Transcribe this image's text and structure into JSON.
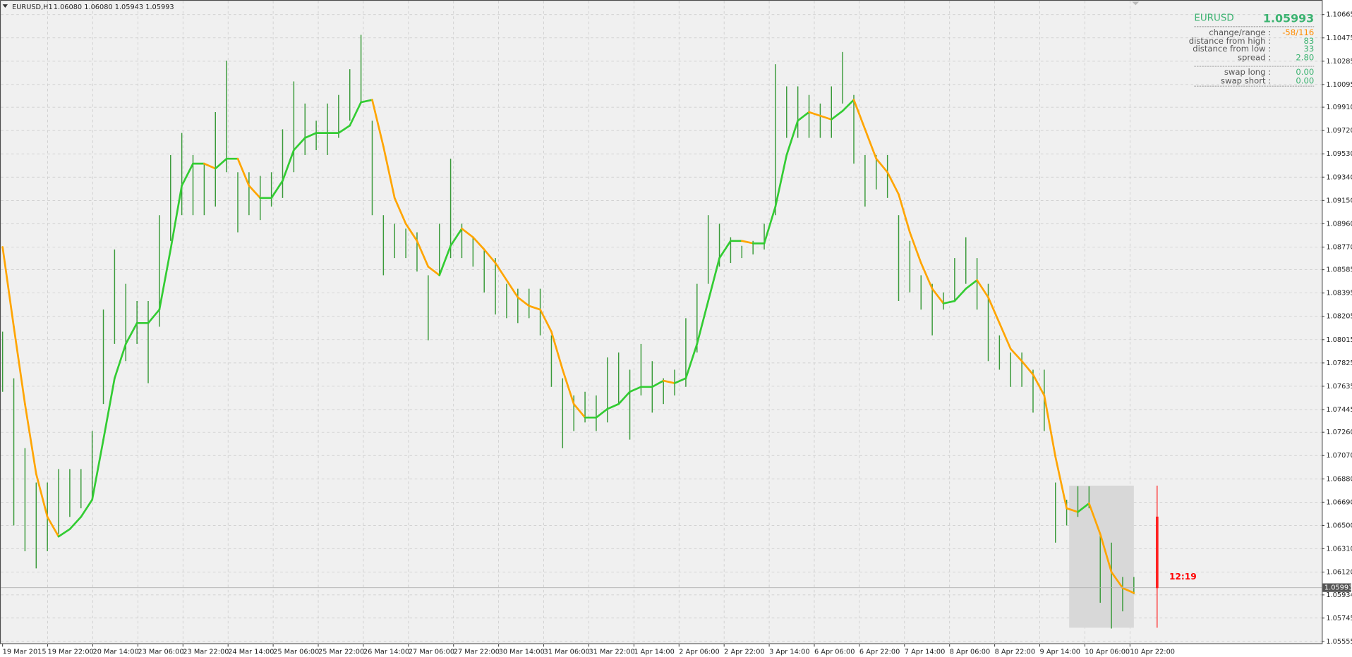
{
  "chart_data": {
    "type": "hilo",
    "symbol": "EURUSD,H1",
    "header_prices": "1.06080 1.06080 1.05943 1.05993",
    "bar_color": "#3a9a3a",
    "high": [
      1.0808,
      1.077,
      1.0713,
      1.0685,
      1.0685,
      1.0696,
      1.0696,
      1.0696,
      1.0727,
      1.0826,
      1.0875,
      1.0847,
      1.0833,
      1.0833,
      1.0903,
      1.0952,
      1.097,
      1.0952,
      1.0945,
      1.0987,
      1.1029,
      1.0938,
      1.0938,
      1.0935,
      1.0938,
      1.0973,
      1.1012,
      1.0994,
      1.098,
      1.0994,
      1.1001,
      1.1022,
      1.105,
      1.098,
      1.0903,
      1.0896,
      1.0892,
      1.0889,
      1.0854,
      1.0896,
      1.0949,
      1.0896,
      1.0885,
      1.0875,
      1.0868,
      1.0847,
      1.0843,
      1.0843,
      1.0843,
      1.0805,
      1.077,
      1.0756,
      1.0759,
      1.0756,
      1.0787,
      1.0791,
      1.0777,
      1.0798,
      1.0784,
      1.077,
      1.0777,
      1.0819,
      1.0847,
      1.0903,
      1.0896,
      1.0885,
      1.0878,
      1.0882,
      1.0896,
      1.1026,
      1.1008,
      1.1008,
      1.1001,
      1.0994,
      1.1008,
      1.1036,
      1.1001,
      1.0952,
      1.0952,
      1.0952,
      1.0903,
      1.0882,
      1.0854,
      1.0847,
      1.084,
      1.0868,
      1.0885,
      1.0868,
      1.0847,
      1.0805,
      1.0791,
      1.0791,
      1.0777,
      1.0777,
      1.0685,
      1.0671,
      1.0682,
      1.0682,
      1.0643,
      1.0636,
      1.0608,
      1.0608
    ],
    "low": [
      1.0759,
      1.065,
      1.0629,
      1.0615,
      1.0629,
      1.0643,
      1.0657,
      1.0664,
      1.0671,
      1.0749,
      1.0798,
      1.0784,
      1.0798,
      1.0766,
      1.0812,
      1.0882,
      1.0903,
      1.0903,
      1.0903,
      1.091,
      1.0938,
      1.0889,
      1.0903,
      1.0899,
      1.091,
      1.0917,
      1.0938,
      1.0952,
      1.0956,
      1.0952,
      1.0966,
      1.098,
      1.0994,
      1.0903,
      1.0854,
      1.0868,
      1.0868,
      1.0857,
      1.0801,
      1.0854,
      1.0868,
      1.0868,
      1.0861,
      1.084,
      1.0822,
      1.0819,
      1.0815,
      1.0819,
      1.0805,
      1.0763,
      1.0713,
      1.0727,
      1.0734,
      1.0727,
      1.0734,
      1.0749,
      1.072,
      1.0756,
      1.0742,
      1.0749,
      1.0756,
      1.0763,
      1.0791,
      1.0847,
      1.0861,
      1.0864,
      1.0868,
      1.0871,
      1.0875,
      1.0903,
      1.0966,
      1.0966,
      1.0966,
      1.0966,
      1.0966,
      1.0994,
      1.0945,
      1.091,
      1.0924,
      1.0917,
      1.0833,
      1.084,
      1.0826,
      1.0805,
      1.0826,
      1.0833,
      1.0847,
      1.0826,
      1.0784,
      1.0777,
      1.0763,
      1.0763,
      1.0742,
      1.0727,
      1.0636,
      1.065,
      1.0657,
      1.0664,
      1.0587,
      1.0566,
      1.058,
      1.0594
    ],
    "ma": {
      "up_color": "#33cc33",
      "down_color": "#ffa500",
      "values": [
        1.0877,
        1.0812,
        1.0749,
        1.0692,
        1.0657,
        1.0641,
        1.0647,
        1.0657,
        1.0671,
        1.072,
        1.077,
        1.0798,
        1.0815,
        1.0815,
        1.0826,
        1.0875,
        1.0927,
        1.0945,
        1.0945,
        1.0941,
        1.0949,
        1.0949,
        1.0927,
        1.0917,
        1.0917,
        1.0931,
        1.0956,
        1.0966,
        1.097,
        1.097,
        1.097,
        1.0976,
        1.0995,
        1.0997,
        1.0959,
        1.0917,
        1.0896,
        1.0882,
        1.0861,
        1.0854,
        1.0878,
        1.0892,
        1.0885,
        1.0875,
        1.0864,
        1.085,
        1.0836,
        1.0829,
        1.0826,
        1.0808,
        1.0777,
        1.0749,
        1.0738,
        1.0738,
        1.0745,
        1.0749,
        1.0759,
        1.0763,
        1.0763,
        1.0768,
        1.0766,
        1.077,
        1.0798,
        1.0833,
        1.0868,
        1.0882,
        1.0882,
        1.088,
        1.088,
        1.091,
        1.0952,
        1.098,
        1.0987,
        1.0984,
        1.0981,
        1.0988,
        1.0997,
        1.0973,
        1.0949,
        1.0938,
        1.092,
        1.0889,
        1.0864,
        1.0843,
        1.0831,
        1.0833,
        1.0843,
        1.085,
        1.0836,
        1.0815,
        1.0794,
        1.0784,
        1.0773,
        1.0756,
        1.0706,
        1.0664,
        1.0661,
        1.0668,
        1.0643,
        1.0612,
        1.0599,
        1.0595
      ]
    },
    "current_price": 1.05993,
    "countdown": "12:19",
    "ylim": [
      1.05533,
      1.1077
    ],
    "yticks": [
      1.10665,
      1.10475,
      1.10285,
      1.10095,
      {
        "value": 1.0991,
        "label": "1.09910"
      },
      {
        "value": 1.0972,
        "label": "1.09720"
      },
      {
        "value": 1.0953,
        "label": "1.09530"
      },
      {
        "value": 1.0934,
        "label": "1.09340"
      },
      {
        "value": 1.0915,
        "label": "1.09150"
      },
      {
        "value": 1.0896,
        "label": "1.08960"
      },
      {
        "value": 1.0877,
        "label": "1.08770"
      },
      1.08585,
      1.08395,
      1.08205,
      1.08015,
      1.07825,
      1.07635,
      1.07445,
      {
        "value": 1.0726,
        "label": "1.07260"
      },
      {
        "value": 1.0707,
        "label": "1.07070"
      },
      {
        "value": 1.0688,
        "label": "1.06880"
      },
      {
        "value": 1.0669,
        "label": "1.06690"
      },
      {
        "value": 1.065,
        "label": "1.06500"
      },
      {
        "value": 1.0631,
        "label": "1.06310"
      },
      {
        "value": 1.0612,
        "label": "1.06120"
      },
      1.05934,
      1.05745,
      1.05555
    ],
    "x_labels": [
      "19 Mar 2015",
      "19 Mar 22:00",
      "20 Mar 14:00",
      "23 Mar 06:00",
      "23 Mar 22:00",
      "24 Mar 14:00",
      "25 Mar 06:00",
      "25 Mar 22:00",
      "26 Mar 14:00",
      "27 Mar 06:00",
      "27 Mar 22:00",
      "30 Mar 14:00",
      "31 Mar 06:00",
      "31 Mar 22:00",
      "1 Apr 14:00",
      "2 Apr 06:00",
      "2 Apr 22:00",
      "3 Apr 14:00",
      "6 Apr 06:00",
      "6 Apr 22:00",
      "7 Apr 14:00",
      "8 Apr 06:00",
      "8 Apr 22:00",
      "9 Apr 14:00",
      "10 Apr 06:00",
      "10 Apr 22:00"
    ],
    "grid": true
  },
  "info_panel": {
    "symbol": "EURUSD",
    "price": "1.05993",
    "rows": [
      [
        "change/range :",
        "-58/116"
      ],
      [
        "distance from high :",
        "83"
      ],
      [
        "distance from low :",
        "33"
      ],
      [
        "spread :",
        "2.80"
      ],
      [
        "swap long :",
        "0.00"
      ],
      [
        "swap short :",
        "0.00"
      ]
    ]
  }
}
